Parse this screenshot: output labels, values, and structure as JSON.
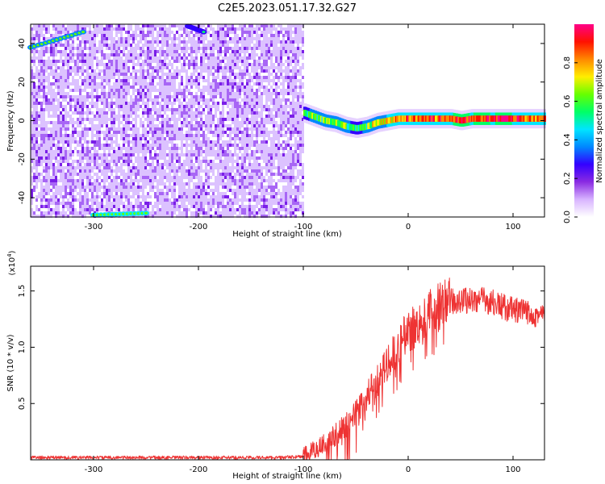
{
  "figure": {
    "title": "C2E5.2023.051.17.32.G27"
  },
  "chart_data": [
    {
      "type": "heatmap",
      "title": "C2E5.2023.051.17.32.G27",
      "xlabel": "Height of straight line (km)",
      "ylabel": "Frequency (Hz)",
      "xlim": [
        -360,
        130
      ],
      "ylim": [
        -50,
        50
      ],
      "x_ticks": [
        -300,
        -200,
        -100,
        0,
        100
      ],
      "y_ticks": [
        -40,
        -20,
        0,
        20,
        40
      ],
      "colorbar": {
        "label": "Normalized spectral amplitude",
        "range": [
          0.0,
          1.0
        ],
        "ticks": [
          "0.0",
          "0.2",
          "0.4",
          "0.6",
          "0.8"
        ],
        "tick_values": [
          0.0,
          0.2,
          0.4,
          0.6,
          0.8
        ],
        "colormap": [
          "#ffffff",
          "#d8b4ff",
          "#8a2be2",
          "#3300ff",
          "#0088ff",
          "#00e5ff",
          "#00ff66",
          "#66ff00",
          "#ffee00",
          "#ff8800",
          "#ff1100",
          "#ff0088"
        ]
      },
      "regions": [
        {
          "description": "broadband noise",
          "x_range": [
            -360,
            -100
          ],
          "y_range": [
            -50,
            50
          ],
          "amplitude_range": [
            0.05,
            0.25
          ]
        },
        {
          "description": "empty",
          "x_range": [
            -100,
            130
          ],
          "y_range": [
            -50,
            50
          ],
          "amplitude": 0.0
        }
      ],
      "ridge": {
        "points": [
          {
            "x": -100,
            "y": 4,
            "amplitude": 0.55
          },
          {
            "x": -90,
            "y": 2,
            "amplitude": 0.6
          },
          {
            "x": -80,
            "y": 0,
            "amplitude": 0.6
          },
          {
            "x": -70,
            "y": -1,
            "amplitude": 0.65
          },
          {
            "x": -60,
            "y": -3,
            "amplitude": 0.6
          },
          {
            "x": -50,
            "y": -4,
            "amplitude": 0.55
          },
          {
            "x": -40,
            "y": -3,
            "amplitude": 0.6
          },
          {
            "x": -30,
            "y": -1,
            "amplitude": 0.7
          },
          {
            "x": -20,
            "y": 0,
            "amplitude": 0.75
          },
          {
            "x": -10,
            "y": 1,
            "amplitude": 0.8
          },
          {
            "x": 0,
            "y": 1,
            "amplitude": 0.85
          },
          {
            "x": 10,
            "y": 1,
            "amplitude": 0.9
          },
          {
            "x": 20,
            "y": 1,
            "amplitude": 0.9
          },
          {
            "x": 30,
            "y": 1,
            "amplitude": 0.85
          },
          {
            "x": 40,
            "y": 1,
            "amplitude": 0.9
          },
          {
            "x": 50,
            "y": 0,
            "amplitude": 0.95
          },
          {
            "x": 60,
            "y": 1,
            "amplitude": 0.9
          },
          {
            "x": 70,
            "y": 1,
            "amplitude": 0.95
          },
          {
            "x": 80,
            "y": 1,
            "amplitude": 0.9
          },
          {
            "x": 90,
            "y": 1,
            "amplitude": 0.95
          },
          {
            "x": 100,
            "y": 1,
            "amplitude": 0.9
          },
          {
            "x": 110,
            "y": 1,
            "amplitude": 0.9
          },
          {
            "x": 120,
            "y": 1,
            "amplitude": 0.85
          },
          {
            "x": 130,
            "y": 1,
            "amplitude": 0.85
          }
        ]
      },
      "aliased_lines": [
        {
          "x_range": [
            -360,
            -310
          ],
          "y_from": 38,
          "y_to": 46,
          "amplitude": 0.4
        },
        {
          "x_range": [
            -300,
            -250
          ],
          "y_from": -49,
          "y_to": -48,
          "amplitude": 0.45
        },
        {
          "x_range": [
            -210,
            -195
          ],
          "y_from": 49,
          "y_to": 46,
          "amplitude": 0.3
        }
      ]
    },
    {
      "type": "line",
      "xlabel": "Height of straight line (km)",
      "ylabel": "SNR (10 * v/v)",
      "y_multiplier": "(x10",
      "y_multiplier_exponent": "4",
      "y_multiplier_close": ")",
      "xlim": [
        -360,
        130
      ],
      "ylim": [
        0,
        1.72
      ],
      "x_ticks": [
        -300,
        -200,
        -100,
        0,
        100
      ],
      "y_ticks": [
        0.5,
        1.0,
        1.5
      ],
      "y_tick_labels": [
        "0.5",
        "1.0",
        "1.5"
      ],
      "series": [
        {
          "color": "#ee3333",
          "x": [
            -360,
            -300,
            -200,
            -120,
            -100,
            -90,
            -80,
            -70,
            -60,
            -50,
            -40,
            -30,
            -20,
            -10,
            0,
            10,
            20,
            30,
            40,
            50,
            60,
            70,
            80,
            90,
            100,
            110,
            120,
            130
          ],
          "y": [
            0.02,
            0.02,
            0.02,
            0.02,
            0.03,
            0.08,
            0.15,
            0.22,
            0.3,
            0.42,
            0.55,
            0.7,
            0.85,
            1.0,
            1.15,
            1.22,
            1.3,
            1.36,
            1.4,
            1.42,
            1.42,
            1.42,
            1.4,
            1.36,
            1.33,
            1.31,
            1.3,
            1.28
          ]
        }
      ]
    }
  ]
}
